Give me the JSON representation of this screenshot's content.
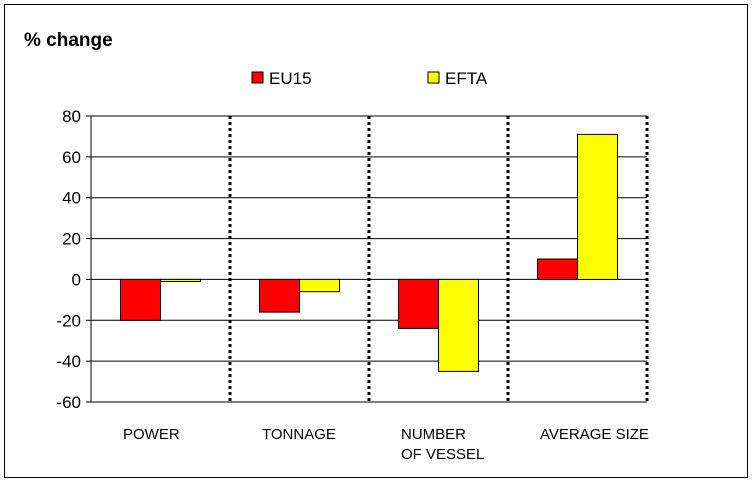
{
  "chart_data": {
    "type": "bar",
    "title": "% change",
    "categories": [
      [
        "POWER"
      ],
      [
        "TONNAGE"
      ],
      [
        "NUMBER",
        "OF VESSEL"
      ],
      [
        "AVERAGE SIZE"
      ]
    ],
    "series": [
      {
        "name": "EU15",
        "color": "#FF0000",
        "values": [
          -20,
          -16,
          -24,
          10
        ]
      },
      {
        "name": "EFTA",
        "color": "#FFFF00",
        "values": [
          -1,
          -6,
          -45,
          71
        ]
      }
    ],
    "ylim": [
      -60,
      80
    ],
    "yticks": [
      80,
      60,
      40,
      20,
      0,
      -20,
      -40,
      -60
    ],
    "grid": true,
    "legend_position": "top-center",
    "xlabel": "",
    "ylabel": ""
  }
}
